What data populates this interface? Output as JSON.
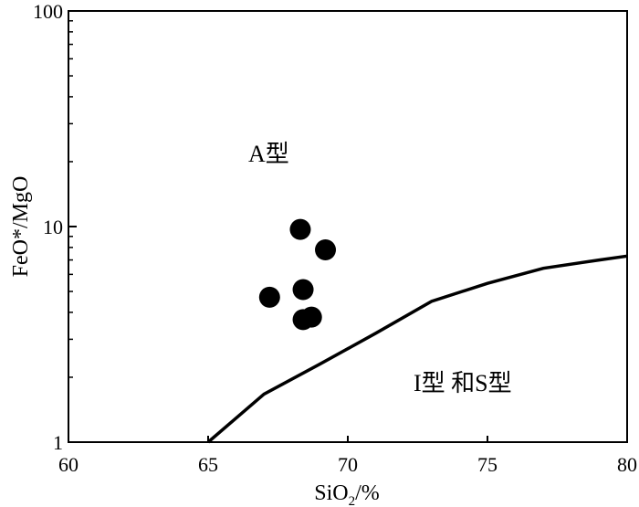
{
  "chart_data": {
    "type": "scatter",
    "title": "",
    "xlabel": "SiO2/%",
    "xlabel_main": "SiO",
    "xlabel_sub": "2",
    "xlabel_tail": "/%",
    "ylabel": "FeO*/MgO",
    "xlim": [
      60,
      80
    ],
    "ylim": [
      1,
      100
    ],
    "yscale": "log",
    "grid": false,
    "legend": "none",
    "x_ticks": [
      60,
      65,
      70,
      75,
      80
    ],
    "x_tick_labels": [
      "60",
      "65",
      "70",
      "75",
      "80"
    ],
    "y_ticks": [
      1,
      10,
      100
    ],
    "y_tick_labels": [
      "1",
      "10",
      "100"
    ],
    "regions": {
      "upper": "A型",
      "lower": "I型 和S型"
    },
    "boundary_curve": {
      "x": [
        65,
        67,
        69,
        71,
        73,
        75,
        77,
        79,
        80
      ],
      "y": [
        1.0,
        1.67,
        2.3,
        3.2,
        4.5,
        5.45,
        6.4,
        7.0,
        7.3
      ]
    },
    "series": [
      {
        "x": [
          67.2,
          68.3,
          68.4,
          68.4,
          68.7,
          69.2
        ],
        "y": [
          4.7,
          9.7,
          5.1,
          3.7,
          3.8,
          7.8
        ]
      }
    ],
    "colors": {
      "points": "#000000",
      "axes": "#000000",
      "curve": "#000000"
    }
  }
}
